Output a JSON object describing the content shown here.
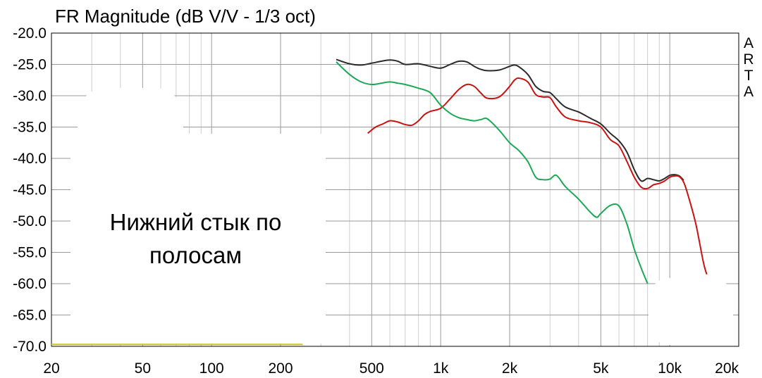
{
  "chart_data": {
    "type": "line",
    "title": "FR Magnitude (dB V/V - 1/3 oct)",
    "x_scale": "log",
    "xlim": [
      20,
      20000
    ],
    "ylim": [
      -70,
      -20
    ],
    "grid": true,
    "y_ticks": [
      "-20.0",
      "-25.0",
      "-30.0",
      "-35.0",
      "-40.0",
      "-45.0",
      "-50.0",
      "-55.0",
      "-60.0",
      "-65.0",
      "-70.0"
    ],
    "x_ticks": [
      {
        "value": 20,
        "label": "20"
      },
      {
        "value": 50,
        "label": "50"
      },
      {
        "value": 100,
        "label": "100"
      },
      {
        "value": 200,
        "label": "200"
      },
      {
        "value": 500,
        "label": "500"
      },
      {
        "value": 1000,
        "label": "1k"
      },
      {
        "value": 2000,
        "label": "2k"
      },
      {
        "value": 5000,
        "label": "5k"
      },
      {
        "value": 10000,
        "label": "10k"
      },
      {
        "value": 20000,
        "label": "20k"
      }
    ],
    "series": [
      {
        "color": "#2b2b2b",
        "x": [
          350,
          400,
          450,
          500,
          550,
          600,
          650,
          700,
          800,
          900,
          1000,
          1100,
          1200,
          1300,
          1400,
          1500,
          1600,
          1800,
          2000,
          2100,
          2200,
          2400,
          2600,
          2800,
          3000,
          3200,
          3500,
          4000,
          4500,
          5000,
          5500,
          6000,
          6500,
          7000,
          7500,
          8000,
          8500,
          9000,
          9500,
          10000,
          10500,
          11000,
          11500
        ],
        "y": [
          -24.2,
          -24.9,
          -25.1,
          -24.8,
          -24.5,
          -24.3,
          -24.5,
          -25.0,
          -24.9,
          -25.3,
          -25.6,
          -25.0,
          -24.5,
          -24.6,
          -25.3,
          -25.8,
          -26.0,
          -25.9,
          -25.3,
          -25.1,
          -25.4,
          -26.6,
          -28.5,
          -29.3,
          -29.5,
          -30.5,
          -31.8,
          -32.6,
          -33.6,
          -34.5,
          -36.0,
          -37.2,
          -39.0,
          -41.8,
          -43.6,
          -43.2,
          -43.4,
          -43.6,
          -43.2,
          -42.7,
          -42.6,
          -42.8,
          -43.5
        ]
      },
      {
        "color": "#cc1111",
        "x": [
          480,
          520,
          560,
          600,
          650,
          700,
          750,
          800,
          850,
          900,
          1000,
          1100,
          1200,
          1300,
          1400,
          1500,
          1600,
          1800,
          2000,
          2100,
          2200,
          2400,
          2600,
          2800,
          3000,
          3200,
          3500,
          4000,
          4500,
          5000,
          5500,
          6000,
          6500,
          7000,
          7500,
          8000,
          8500,
          9000,
          9500,
          10000,
          10500,
          11000,
          11500,
          12000,
          13000,
          14000,
          14500
        ],
        "y": [
          -36.0,
          -35.0,
          -34.5,
          -34.0,
          -34.2,
          -34.6,
          -34.7,
          -34.0,
          -33.0,
          -32.5,
          -32.0,
          -30.5,
          -29.0,
          -28.2,
          -28.5,
          -29.6,
          -30.4,
          -30.2,
          -28.5,
          -27.5,
          -27.2,
          -27.8,
          -29.8,
          -30.2,
          -30.3,
          -31.8,
          -33.4,
          -34.0,
          -34.3,
          -35.0,
          -37.0,
          -38.0,
          -40.5,
          -43.0,
          -44.6,
          -44.8,
          -44.2,
          -44.0,
          -43.6,
          -43.0,
          -42.8,
          -42.9,
          -43.8,
          -45.8,
          -50.5,
          -56.5,
          -58.5
        ]
      },
      {
        "color": "#1aaa55",
        "x": [
          350,
          400,
          450,
          500,
          550,
          600,
          650,
          700,
          800,
          900,
          1000,
          1100,
          1200,
          1300,
          1400,
          1500,
          1600,
          1800,
          2000,
          2200,
          2400,
          2600,
          2800,
          3000,
          3200,
          3500,
          4000,
          4500,
          4800,
          5000,
          5500,
          6000,
          6500,
          7000,
          7500,
          8000
        ],
        "y": [
          -24.6,
          -26.6,
          -27.8,
          -28.2,
          -28.0,
          -27.8,
          -28.0,
          -28.2,
          -28.8,
          -29.5,
          -31.5,
          -32.8,
          -33.5,
          -33.8,
          -34.0,
          -33.8,
          -33.7,
          -35.5,
          -37.5,
          -38.8,
          -40.5,
          -43.0,
          -43.4,
          -43.3,
          -42.7,
          -44.5,
          -46.5,
          -48.6,
          -49.4,
          -48.8,
          -47.5,
          -47.6,
          -50.5,
          -54.5,
          -57.5,
          -60.0
        ]
      },
      {
        "color": "#c8c81a",
        "x": [
          20,
          250
        ],
        "y": [
          -69.7,
          -69.7
        ]
      }
    ],
    "annotations": [
      "Нижний стык по",
      "полосам"
    ],
    "brand": [
      "A",
      "R",
      "T",
      "A"
    ]
  }
}
